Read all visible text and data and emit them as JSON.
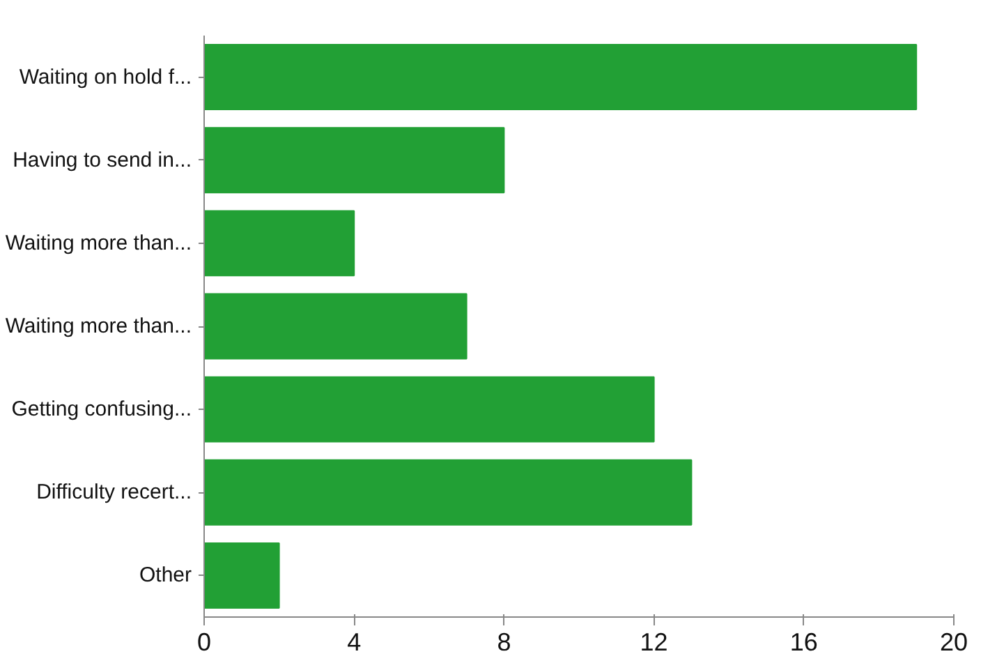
{
  "chart_data": {
    "type": "bar",
    "orientation": "horizontal",
    "categories": [
      "Waiting on hold f...",
      "Having to send in...",
      "Waiting more than...",
      "Waiting more than...",
      "Getting confusing...",
      "Difficulty recert...",
      "Other"
    ],
    "values": [
      19,
      8,
      4,
      7,
      12,
      13,
      2
    ],
    "color": "#22a035",
    "xlim": [
      0,
      20
    ],
    "xticks": [
      0,
      4,
      8,
      12,
      16,
      20
    ],
    "grid": false
  }
}
